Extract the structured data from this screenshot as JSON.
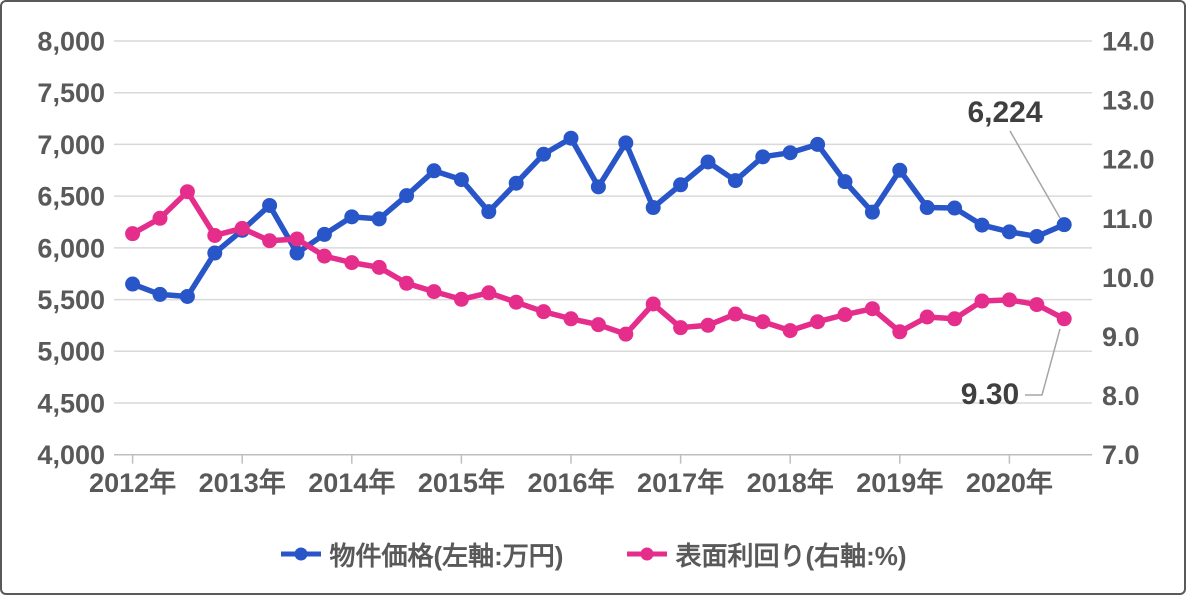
{
  "chart_data": {
    "type": "line",
    "x_axis": {
      "tick_labels": [
        "2012年",
        "2013年",
        "2014年",
        "2015年",
        "2016年",
        "2017年",
        "2018年",
        "2019年",
        "2020年"
      ],
      "points_per_tick": 4
    },
    "left_axis": {
      "min": 4000,
      "max": 8000,
      "step": 500,
      "tick_labels": [
        "8,000",
        "7,500",
        "7,000",
        "6,500",
        "6,000",
        "5,500",
        "5,000",
        "4,500",
        "4,000"
      ]
    },
    "right_axis": {
      "min": 7.0,
      "max": 14.0,
      "step": 1.0,
      "tick_labels": [
        "14.0",
        "13.0",
        "12.0",
        "11.0",
        "10.0",
        "9.0",
        "8.0",
        "7.0"
      ]
    },
    "grid": true,
    "legend_position": "bottom",
    "series": [
      {
        "name": "物件価格(左軸:万円)",
        "axis": "left",
        "color": "#2855c8",
        "values": [
          5650,
          5550,
          5530,
          5950,
          6170,
          6410,
          5950,
          6130,
          6300,
          6280,
          6505,
          6745,
          6660,
          6350,
          6625,
          6905,
          7060,
          6590,
          7015,
          6390,
          6610,
          6830,
          6650,
          6880,
          6920,
          7000,
          6640,
          6345,
          6750,
          6390,
          6385,
          6220,
          6155,
          6110,
          6224
        ]
      },
      {
        "name": "表面利回り(右軸:%)",
        "axis": "right",
        "color": "#e52d8c",
        "values": [
          10.74,
          11.0,
          11.45,
          10.71,
          10.83,
          10.62,
          10.65,
          10.36,
          10.25,
          10.17,
          9.9,
          9.76,
          9.63,
          9.74,
          9.58,
          9.42,
          9.3,
          9.2,
          9.04,
          9.55,
          9.15,
          9.19,
          9.38,
          9.25,
          9.1,
          9.25,
          9.37,
          9.47,
          9.08,
          9.33,
          9.3,
          9.6,
          9.62,
          9.54,
          9.3
        ]
      }
    ],
    "annotations": [
      {
        "series_index": 0,
        "point_index": 34,
        "text": "6,224"
      },
      {
        "series_index": 1,
        "point_index": 34,
        "text": "9.30"
      }
    ]
  },
  "colors": {
    "grid": "#d9d9d9",
    "axis_line": "#bfbfbf",
    "axis_text": "#595959",
    "annotation_text": "#3f3f3f",
    "leader_line": "#a6a6a6",
    "border": "#595959",
    "background": "#ffffff"
  }
}
